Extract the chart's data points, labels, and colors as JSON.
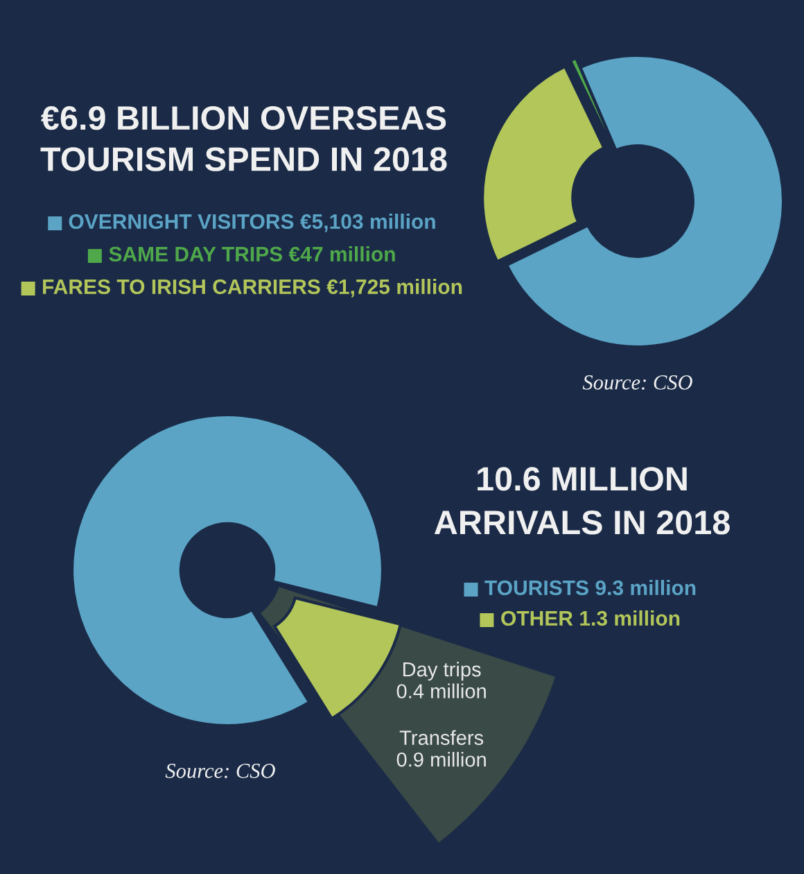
{
  "chart_data": [
    {
      "type": "donut",
      "title": "€6.9 BILLION OVERSEAS\nTOURISM SPEND IN 2018",
      "categories": [
        "OVERNIGHT VISITORS",
        "SAME DAY TRIPS",
        "FARES TO IRISH CARRIERS"
      ],
      "values": [
        5103,
        47,
        1725
      ],
      "colors": [
        "#5ba4c6",
        "#4fa84a",
        "#b3c65a"
      ],
      "value_labels": [
        "€5,103 million",
        "€47 million",
        "€1,725 million"
      ],
      "legend": "left",
      "annotations": [
        "Source: CSO"
      ]
    },
    {
      "type": "donut",
      "title": "10.6 MILLION\nARRIVALS IN 2018",
      "categories": [
        "TOURISTS",
        "OTHER"
      ],
      "values": [
        9.3,
        1.3
      ],
      "colors": [
        "#5ba4c6",
        "#b3c65a"
      ],
      "value_labels": [
        "9.3 million",
        "1.3 million"
      ],
      "legend": "right",
      "annotations": [
        "Day trips\n0.4 million",
        "Transfers\n0.9 million",
        "Source: CSO"
      ]
    }
  ]
}
